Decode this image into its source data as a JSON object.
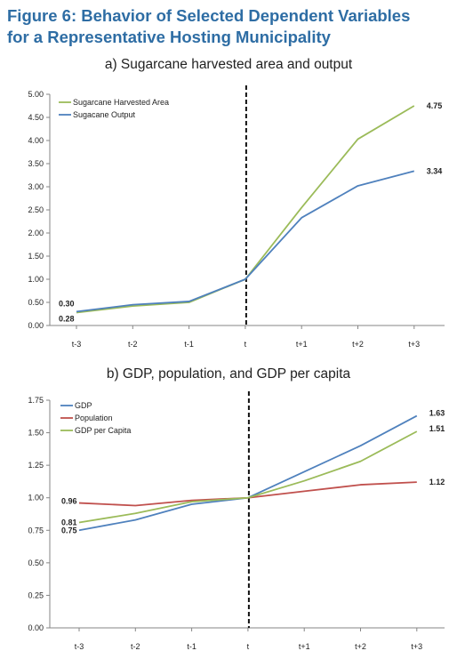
{
  "figure": {
    "title_line1": "Figure 6: Behavior of Selected Dependent Variables",
    "title_line2": "for a Representative Hosting Municipality"
  },
  "chart_data": [
    {
      "type": "line",
      "title": "a) Sugarcane harvested area and output",
      "categories": [
        "t-3",
        "t-2",
        "t-1",
        "t",
        "t+1",
        "t+2",
        "t+3"
      ],
      "ylim": [
        0,
        5
      ],
      "yticks": [
        "0.00",
        "0.50",
        "1.00",
        "1.50",
        "2.00",
        "2.50",
        "3.00",
        "3.50",
        "4.00",
        "4.50",
        "5.00"
      ],
      "vline_at": "t",
      "legend_position": "top-left",
      "series": [
        {
          "name": "Sugarcane Harvested Area",
          "color": "#9bbb59",
          "values": [
            0.28,
            0.42,
            0.5,
            1.0,
            2.55,
            4.03,
            4.75
          ]
        },
        {
          "name": "Sugacane Output",
          "color": "#4f81bd",
          "values": [
            0.3,
            0.45,
            0.52,
            1.0,
            2.33,
            3.02,
            3.34
          ]
        }
      ],
      "annotations": [
        {
          "text": "0.30",
          "category": "t-3",
          "value": 0.3
        },
        {
          "text": "0.28",
          "category": "t-3",
          "value": 0.28
        },
        {
          "text": "4.75",
          "category": "t+3",
          "value": 4.75
        },
        {
          "text": "3.34",
          "category": "t+3",
          "value": 3.34
        }
      ]
    },
    {
      "type": "line",
      "title": "b) GDP, population, and GDP per capita",
      "categories": [
        "t-3",
        "t-2",
        "t-1",
        "t",
        "t+1",
        "t+2",
        "t+3"
      ],
      "ylim": [
        0,
        1.75
      ],
      "yticks": [
        "0.00",
        "0.25",
        "0.50",
        "0.75",
        "1.00",
        "1.25",
        "1.50",
        "1.75"
      ],
      "vline_at": "t",
      "legend_position": "top-left",
      "series": [
        {
          "name": "GDP",
          "color": "#4f81bd",
          "values": [
            0.75,
            0.83,
            0.95,
            1.0,
            1.2,
            1.4,
            1.63
          ]
        },
        {
          "name": "Population",
          "color": "#c0504d",
          "values": [
            0.96,
            0.94,
            0.98,
            1.0,
            1.05,
            1.1,
            1.12
          ]
        },
        {
          "name": "GDP per Capita",
          "color": "#9bbb59",
          "values": [
            0.81,
            0.88,
            0.97,
            1.0,
            1.13,
            1.28,
            1.51
          ]
        }
      ],
      "annotations": [
        {
          "text": "0.96",
          "category": "t-3",
          "value": 0.96
        },
        {
          "text": "0.81",
          "category": "t-3",
          "value": 0.81
        },
        {
          "text": "0.75",
          "category": "t-3",
          "value": 0.75
        },
        {
          "text": "1.63",
          "category": "t+3",
          "value": 1.63
        },
        {
          "text": "1.51",
          "category": "t+3",
          "value": 1.51
        },
        {
          "text": "1.12",
          "category": "t+3",
          "value": 1.12
        }
      ]
    }
  ]
}
